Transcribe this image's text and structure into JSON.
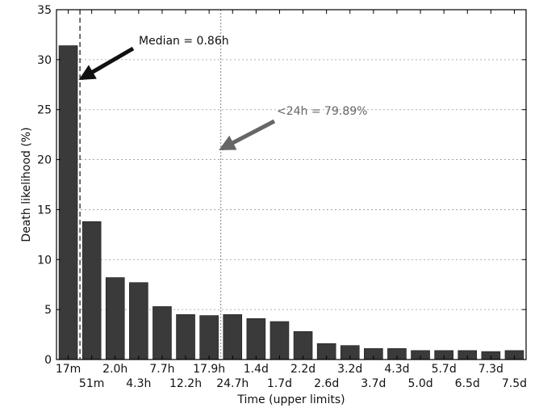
{
  "chart_data": {
    "type": "bar",
    "xlabel": "Time (upper limits)",
    "ylabel": "Death likelihood (%)",
    "ylim": [
      0,
      35
    ],
    "yticks": [
      0,
      5,
      10,
      15,
      20,
      25,
      30,
      35
    ],
    "grid": true,
    "categories": [
      "17m",
      "51m",
      "2.0h",
      "4.3h",
      "7.7h",
      "12.2h",
      "17.9h",
      "24.7h",
      "1.4d",
      "1.7d",
      "2.2d",
      "2.6d",
      "3.2d",
      "3.7d",
      "4.3d",
      "5.0d",
      "5.7d",
      "6.5d",
      "7.3d",
      "7.5d"
    ],
    "values": [
      31.4,
      13.8,
      8.2,
      7.7,
      5.3,
      4.5,
      4.4,
      4.5,
      4.1,
      3.8,
      2.8,
      1.6,
      1.4,
      1.1,
      1.1,
      0.9,
      0.9,
      0.9,
      0.8,
      0.9
    ],
    "bar_color": "#3a3a3a",
    "annotations": [
      {
        "text": "Median = 0.86h",
        "line_style": "dashed",
        "x_after_category": 0,
        "color": "#111111"
      },
      {
        "text": "<24h = 79.89%",
        "line_style": "dotted",
        "x_after_category": 6,
        "color": "#666666"
      }
    ]
  }
}
